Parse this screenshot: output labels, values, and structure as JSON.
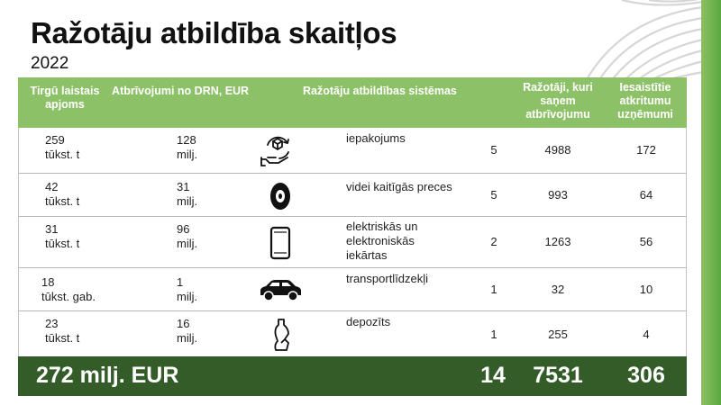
{
  "title": "Ražotāju atbildība skaitļos",
  "year": "2022",
  "table": {
    "headers": {
      "market_volume": "Tirgū laistais apjoms",
      "exemptions": "Atbrīvojumi no DRN, EUR",
      "systems": "Ražotāju atbildības sistēmas",
      "exempt_producers": "Ražotāji, kuri saņem atbrīvojumu",
      "involved_companies": "Iesaistītie atkritumu uzņēmumi"
    },
    "rows": [
      {
        "volume": "259",
        "volume_unit": "tūkst. t",
        "exemption": "128",
        "exemption_unit": "milj.",
        "icon": "recycle-hand-icon",
        "category": "iepakojums",
        "systems": "5",
        "producers": "4988",
        "companies": "172"
      },
      {
        "volume": "42",
        "volume_unit": "tūkst. t",
        "exemption": "31",
        "exemption_unit": "milj.",
        "icon": "tire-icon",
        "category": "videi kaitīgās preces",
        "systems": "5",
        "producers": "993",
        "companies": "64"
      },
      {
        "volume": "31",
        "volume_unit": "tūkst. t",
        "exemption": "96",
        "exemption_unit": "milj.",
        "icon": "phone-icon",
        "category": "elektriskās un elektroniskās iekārtas",
        "systems": "2",
        "producers": "1263",
        "companies": "56"
      },
      {
        "volume": "18",
        "volume_unit": "tūkst. gab.",
        "exemption": "1",
        "exemption_unit": "milj.",
        "icon": "car-icon",
        "category": "transportlīdzekļi",
        "systems": "1",
        "producers": "32",
        "companies": "10"
      },
      {
        "volume": "23",
        "volume_unit": "tūkst. t",
        "exemption": "16",
        "exemption_unit": "milj.",
        "icon": "bottle-icon",
        "category": "depozīts",
        "systems": "1",
        "producers": "255",
        "companies": "4"
      }
    ],
    "totals": {
      "exemptions": "272 milj. EUR",
      "systems": "14",
      "producers": "7531",
      "companies": "306"
    }
  },
  "colors": {
    "header_green": "#8dc167",
    "footer_green": "#345c28",
    "accent_green": "#5aa83d"
  }
}
